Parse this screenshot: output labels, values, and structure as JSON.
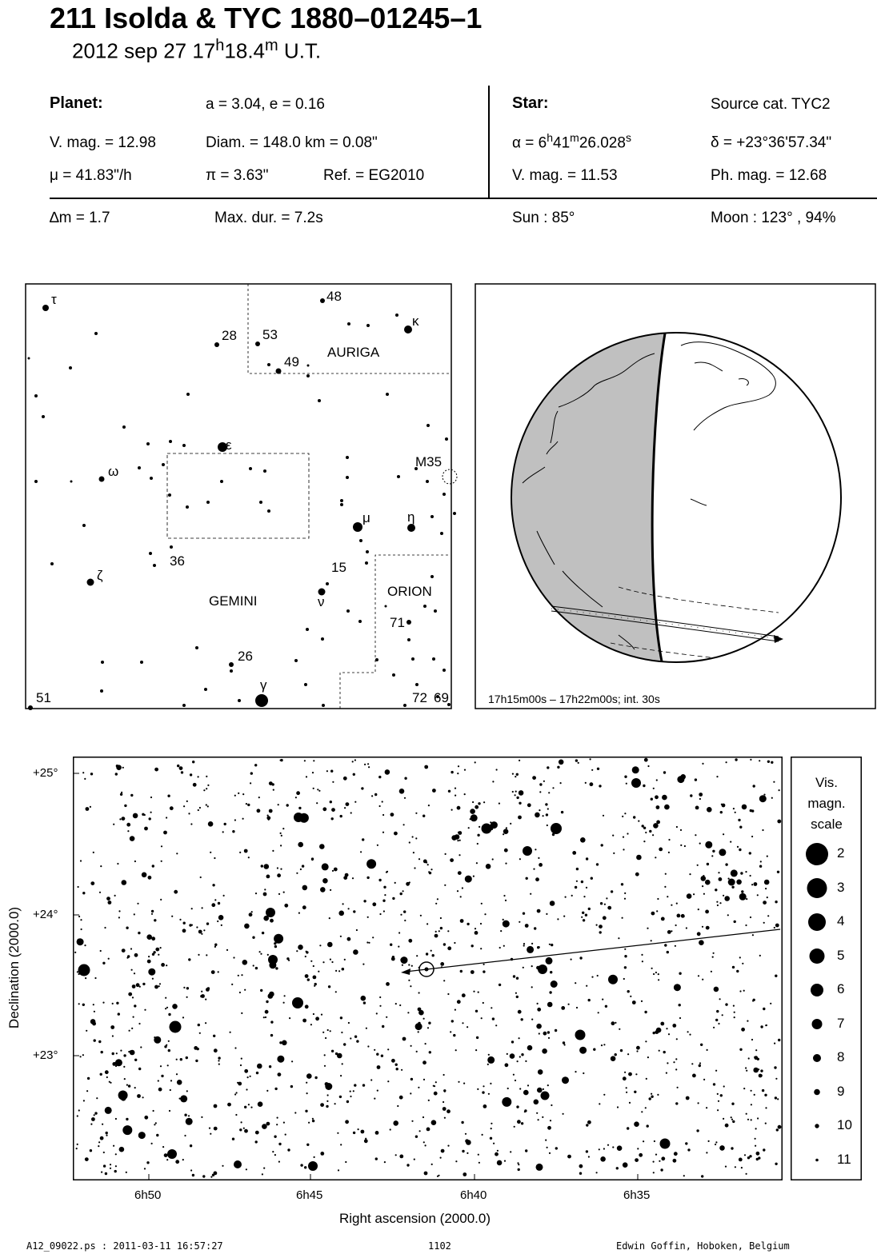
{
  "header": {
    "title": "211 Isolda  &  TYC 1880–01245–1",
    "date": "2012 sep 27  17",
    "hour_unit": "h",
    "minutes": "18.4",
    "minute_unit": "m",
    "utc": " U.T."
  },
  "planet": {
    "heading": "Planet:",
    "orbit": "a = 3.04, e = 0.16",
    "vmag": "V. mag. = 12.98",
    "diam": "Diam. = 148.0 km = 0.08\"",
    "mu": "μ =  41.83\"/h",
    "pi": "π =  3.63\"",
    "ref": "Ref. = EG2010"
  },
  "star": {
    "heading": "Star:",
    "source": "Source cat.  TYC2",
    "alpha_prefix": "α =  6",
    "alpha_h": "h",
    "alpha_min": "41",
    "alpha_m": "m",
    "alpha_sec": "26.028",
    "alpha_s": "s",
    "delta": "δ = +23°36'57.34\"",
    "vmag": "V. mag. = 11.53",
    "phmag": "Ph. mag. = 12.68"
  },
  "event": {
    "dm": "∆m = 1.7",
    "maxdur": "Max. dur. = 7.2s",
    "sun": "Sun :  85°",
    "moon": "Moon : 123° , 94%"
  },
  "finder": {
    "labels": {
      "tau": "τ",
      "n48": "48",
      "kappa": "κ",
      "n28": "28",
      "n53": "53",
      "n49": "49",
      "auriga": "AURIGA",
      "epsilon": "ε",
      "omega": "ω",
      "m35": "M35",
      "mu": "μ",
      "eta": "η",
      "n36": "36",
      "n15": "15",
      "zeta": "ζ",
      "gemini": "GEMINI",
      "nu": "ν",
      "orion": "ORION",
      "n71": "71",
      "n26": "26",
      "gamma": "γ",
      "n51": "51",
      "n72": "72",
      "n69": "69"
    }
  },
  "globe": {
    "caption": "17h15m00s – 17h22m00s; int. 30s",
    "night_color": "#c0c0c0"
  },
  "starchart": {
    "y_ticks": [
      "+25°",
      "+24°",
      "+23°"
    ],
    "x_ticks": [
      "6h50",
      "6h45",
      "6h40",
      "6h35"
    ],
    "xlabel": "Right ascension (2000.0)",
    "ylabel": "Declination (2000.0)"
  },
  "scale": {
    "heading": [
      "Vis.",
      "magn.",
      "scale"
    ],
    "magnitudes": [
      "2",
      "3",
      "4",
      "5",
      "6",
      "7",
      "8",
      "9",
      "10",
      "11"
    ]
  },
  "footer": {
    "file": "A12_09022.ps : 2011-03-11 16:57:27",
    "page": "1102",
    "author": "Edwin Goffin, Hoboken, Belgium"
  }
}
